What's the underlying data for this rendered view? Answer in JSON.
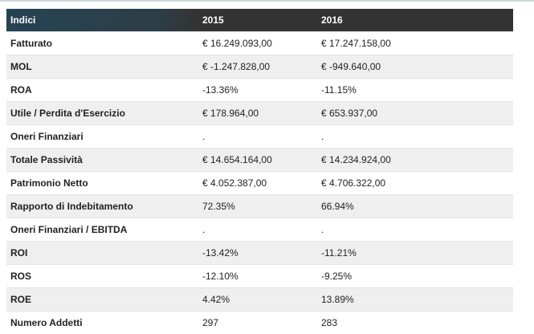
{
  "table": {
    "headers": [
      "Indici",
      "2015",
      "2016"
    ],
    "rows": [
      [
        "Fatturato",
        "€ 16.249.093,00",
        "€ 17.247.158,00"
      ],
      [
        "MOL",
        "€ -1.247.828,00",
        "€ -949.640,00"
      ],
      [
        "ROA",
        "-13.36%",
        "-11.15%"
      ],
      [
        "Utile / Perdita d'Esercizio",
        "€ 178.964,00",
        "€ 653.937,00"
      ],
      [
        "Oneri Finanziari",
        ".",
        "."
      ],
      [
        "Totale Passività",
        "€ 14.654.164,00",
        "€ 14.234.924,00"
      ],
      [
        "Patrimonio Netto",
        "€ 4.052.387,00",
        "€ 4.706.322,00"
      ],
      [
        "Rapporto di Indebitamento",
        "72.35%",
        "66.94%"
      ],
      [
        "Oneri Finanziari / EBITDA",
        ".",
        "."
      ],
      [
        "ROI",
        "-13.42%",
        "-11.21%"
      ],
      [
        "ROS",
        "-12.10%",
        "-9.25%"
      ],
      [
        "ROE",
        "4.42%",
        "13.89%"
      ],
      [
        "Numero Addetti",
        "297",
        "283"
      ]
    ]
  }
}
